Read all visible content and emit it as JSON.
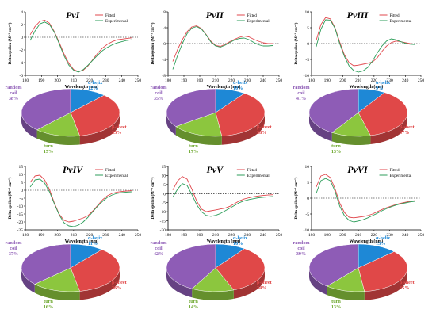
{
  "colors": {
    "fitted": "#e0474c",
    "experimental": "#2e9e5b",
    "alpha_helix": "#1e88d6",
    "beta_sheet": "#e04848",
    "turn": "#8cc63e",
    "random_coil": "#8e5cb6",
    "alpha_label": "#1e88d6",
    "beta_label": "#e04848",
    "turn_label": "#6aa62a",
    "coil_label": "#8e5cb6"
  },
  "chart_data": [
    {
      "type": "line",
      "title": "PvI",
      "xlabel": "Wavelength (nm)",
      "ylabel": "Delta epsilon (M⁻¹ cm⁻¹)",
      "xlim": [
        180,
        250
      ],
      "ylim": [
        -6,
        4
      ],
      "xticks": [
        180,
        190,
        200,
        210,
        220,
        230,
        240,
        250
      ],
      "yticks": [
        -6,
        -4,
        -2,
        0,
        2,
        4
      ],
      "legend_position": "top-right",
      "series": [
        {
          "name": "Fitted",
          "x": [
            183,
            186,
            189,
            192,
            195,
            198,
            201,
            204,
            207,
            210,
            213,
            216,
            219,
            222,
            225,
            228,
            231,
            234,
            237,
            240,
            243,
            246
          ],
          "y": [
            0.4,
            1.7,
            2.5,
            2.7,
            2.2,
            0.9,
            -0.8,
            -2.6,
            -4.1,
            -5.1,
            -5.4,
            -5.2,
            -4.5,
            -3.5,
            -2.5,
            -1.7,
            -1.1,
            -0.7,
            -0.4,
            -0.3,
            -0.2,
            -0.1
          ]
        },
        {
          "name": "Experimental",
          "x": [
            183,
            186,
            189,
            192,
            195,
            198,
            201,
            204,
            207,
            210,
            213,
            216,
            219,
            222,
            225,
            228,
            231,
            234,
            237,
            240,
            243,
            246
          ],
          "y": [
            -0.5,
            1.0,
            2.1,
            2.4,
            2.0,
            0.8,
            -1.0,
            -2.9,
            -4.4,
            -5.2,
            -5.5,
            -5.1,
            -4.4,
            -3.6,
            -2.8,
            -2.1,
            -1.6,
            -1.2,
            -0.9,
            -0.7,
            -0.5,
            -0.4
          ]
        }
      ]
    },
    {
      "type": "line",
      "title": "PvII",
      "xlabel": "Wavelength (nm)",
      "ylabel": "Delta epsilon (M⁻¹ cm⁻¹)",
      "xlim": [
        180,
        250
      ],
      "ylim": [
        -8,
        8
      ],
      "xticks": [
        180,
        190,
        200,
        210,
        220,
        230,
        240,
        250
      ],
      "yticks": [
        -8,
        -4,
        0,
        4,
        8
      ],
      "legend_position": "top-right",
      "series": [
        {
          "name": "Fitted",
          "x": [
            183,
            186,
            189,
            192,
            195,
            198,
            201,
            204,
            207,
            210,
            213,
            216,
            219,
            222,
            225,
            228,
            231,
            234,
            237,
            240,
            243,
            246
          ],
          "y": [
            -4.5,
            -1.5,
            1.0,
            3.0,
            4.2,
            4.5,
            3.8,
            2.3,
            0.6,
            -0.5,
            -0.7,
            -0.2,
            0.5,
            1.1,
            1.6,
            1.9,
            1.7,
            1.1,
            0.6,
            0.2,
            0.0,
            0.0
          ]
        },
        {
          "name": "Experimental",
          "x": [
            183,
            186,
            189,
            192,
            195,
            198,
            201,
            204,
            207,
            210,
            213,
            216,
            219,
            222,
            225,
            228,
            231,
            234,
            237,
            240,
            243,
            246
          ],
          "y": [
            -6.5,
            -3.0,
            0.0,
            2.5,
            3.9,
            4.3,
            3.7,
            2.2,
            0.4,
            -0.6,
            -0.9,
            -0.4,
            0.3,
            0.9,
            1.3,
            1.4,
            1.0,
            0.3,
            -0.3,
            -0.6,
            -0.6,
            -0.5
          ]
        }
      ]
    },
    {
      "type": "line",
      "title": "PvIII",
      "xlabel": "Wavelength (nm)",
      "ylabel": "Delta epsilon (M⁻¹ cm⁻¹)",
      "xlim": [
        180,
        250
      ],
      "ylim": [
        -10,
        10
      ],
      "xticks": [
        180,
        190,
        200,
        210,
        220,
        230,
        240,
        250
      ],
      "yticks": [
        -10,
        -5,
        0,
        5,
        10
      ],
      "legend_position": "top-right",
      "series": [
        {
          "name": "Fitted",
          "x": [
            183,
            186,
            189,
            192,
            195,
            198,
            201,
            204,
            207,
            210,
            213,
            216,
            219,
            222,
            225,
            228,
            231,
            234,
            237,
            240,
            243,
            246
          ],
          "y": [
            1.0,
            6.0,
            8.2,
            7.8,
            5.0,
            0.5,
            -3.5,
            -6.0,
            -7.0,
            -6.8,
            -6.5,
            -6.2,
            -5.8,
            -4.5,
            -2.5,
            -0.8,
            0.3,
            0.8,
            0.6,
            0.3,
            0.0,
            -0.2
          ]
        },
        {
          "name": "Experimental",
          "x": [
            183,
            186,
            189,
            192,
            195,
            198,
            201,
            204,
            207,
            210,
            213,
            216,
            219,
            222,
            225,
            228,
            231,
            234,
            237,
            240,
            243,
            246
          ],
          "y": [
            -1.0,
            4.5,
            7.5,
            7.4,
            4.8,
            0.0,
            -4.0,
            -7.0,
            -8.5,
            -9.0,
            -8.6,
            -7.5,
            -5.5,
            -3.0,
            -0.8,
            0.8,
            1.5,
            1.2,
            0.6,
            0.1,
            -0.2,
            -0.3
          ]
        }
      ]
    },
    {
      "type": "line",
      "title": "PvIV",
      "xlabel": "Wavelength (nm)",
      "ylabel": "Delta epsilon (M⁻¹ cm⁻¹)",
      "xlim": [
        180,
        250
      ],
      "ylim": [
        -25,
        15
      ],
      "xticks": [
        180,
        190,
        200,
        210,
        220,
        230,
        240,
        250
      ],
      "yticks": [
        -25,
        -20,
        -15,
        -10,
        -5,
        0,
        5,
        10,
        15
      ],
      "legend_position": "top-right",
      "series": [
        {
          "name": "Fitted",
          "x": [
            183,
            186,
            189,
            192,
            195,
            198,
            201,
            204,
            207,
            210,
            213,
            216,
            219,
            222,
            225,
            228,
            231,
            234,
            237,
            240,
            243,
            246
          ],
          "y": [
            5.0,
            9.0,
            9.5,
            6.5,
            0.5,
            -8.0,
            -15.0,
            -19.0,
            -20.0,
            -19.5,
            -18.5,
            -17.5,
            -16.0,
            -13.0,
            -9.5,
            -6.0,
            -3.5,
            -2.0,
            -1.2,
            -0.8,
            -0.5,
            -0.3
          ]
        },
        {
          "name": "Experimental",
          "x": [
            183,
            186,
            189,
            192,
            195,
            198,
            201,
            204,
            207,
            210,
            213,
            216,
            219,
            222,
            225,
            228,
            231,
            234,
            237,
            240,
            243,
            246
          ],
          "y": [
            2.0,
            6.5,
            7.0,
            4.5,
            -1.0,
            -8.5,
            -15.5,
            -20.5,
            -22.5,
            -23.0,
            -22.0,
            -20.0,
            -17.0,
            -13.5,
            -10.0,
            -7.0,
            -4.5,
            -3.0,
            -2.0,
            -1.5,
            -1.2,
            -1.0
          ]
        }
      ]
    },
    {
      "type": "line",
      "title": "PvV",
      "xlabel": "Wavelength (nm)",
      "ylabel": "Delta epsilon (M⁻¹ cm⁻¹)",
      "xlim": [
        180,
        250
      ],
      "ylim": [
        -20,
        15
      ],
      "xticks": [
        180,
        190,
        200,
        210,
        220,
        230,
        240,
        250
      ],
      "yticks": [
        -20,
        -15,
        -10,
        -5,
        0,
        5,
        10,
        15
      ],
      "legend_position": "top-right",
      "series": [
        {
          "name": "Fitted",
          "x": [
            183,
            186,
            189,
            192,
            195,
            198,
            201,
            204,
            207,
            210,
            213,
            216,
            219,
            222,
            225,
            228,
            231,
            234,
            237,
            240,
            243,
            246
          ],
          "y": [
            2.0,
            7.0,
            9.5,
            8.0,
            2.5,
            -4.0,
            -8.5,
            -10.0,
            -9.5,
            -9.0,
            -8.5,
            -8.0,
            -7.0,
            -5.5,
            -4.0,
            -3.0,
            -2.3,
            -1.7,
            -1.3,
            -1.0,
            -0.8,
            -0.6
          ]
        },
        {
          "name": "Experimental",
          "x": [
            183,
            186,
            189,
            192,
            195,
            198,
            201,
            204,
            207,
            210,
            213,
            216,
            219,
            222,
            225,
            228,
            231,
            234,
            237,
            240,
            243,
            246
          ],
          "y": [
            -2.0,
            2.5,
            5.5,
            4.5,
            -0.5,
            -6.0,
            -10.0,
            -12.0,
            -12.5,
            -12.0,
            -11.0,
            -9.5,
            -8.0,
            -6.5,
            -5.0,
            -4.0,
            -3.3,
            -2.8,
            -2.3,
            -2.0,
            -1.8,
            -1.6
          ]
        }
      ]
    },
    {
      "type": "line",
      "title": "PvVI",
      "xlabel": "Wavelength (nm)",
      "ylabel": "Delta epsilon (M⁻¹ cm⁻¹)",
      "xlim": [
        180,
        250
      ],
      "ylim": [
        -10,
        10
      ],
      "xticks": [
        180,
        190,
        200,
        210,
        220,
        230,
        240,
        250
      ],
      "yticks": [
        -10,
        -5,
        0,
        5,
        10
      ],
      "legend_position": "top-right",
      "series": [
        {
          "name": "Fitted",
          "x": [
            183,
            186,
            189,
            192,
            195,
            198,
            201,
            204,
            207,
            210,
            213,
            216,
            219,
            222,
            225,
            228,
            231,
            234,
            237,
            240,
            243,
            246
          ],
          "y": [
            3.5,
            7.0,
            7.5,
            6.5,
            3.0,
            -1.5,
            -4.5,
            -6.0,
            -6.2,
            -6.0,
            -5.8,
            -5.5,
            -5.0,
            -4.3,
            -3.6,
            -3.0,
            -2.5,
            -2.0,
            -1.6,
            -1.3,
            -1.0,
            -0.8
          ]
        },
        {
          "name": "Experimental",
          "x": [
            183,
            186,
            189,
            192,
            195,
            198,
            201,
            204,
            207,
            210,
            213,
            216,
            219,
            222,
            225,
            228,
            231,
            234,
            237,
            240,
            243,
            246
          ],
          "y": [
            1.5,
            5.5,
            6.2,
            5.5,
            2.2,
            -2.5,
            -5.5,
            -7.0,
            -7.5,
            -7.2,
            -6.8,
            -6.2,
            -5.5,
            -4.8,
            -4.0,
            -3.3,
            -2.7,
            -2.2,
            -1.8,
            -1.5,
            -1.2,
            -1.0
          ]
        }
      ]
    },
    {
      "type": "pie",
      "labels": [
        "α-helix",
        "β-sheet",
        "turn",
        "random coil"
      ],
      "values": [
        12,
        35,
        15,
        38
      ],
      "display": [
        "α-helix\n12%",
        "β-sheet\n35%",
        "turn\n15%",
        "random\ncoil\n38%"
      ]
    },
    {
      "type": "pie",
      "labels": [
        "α-helix",
        "β-sheet",
        "turn",
        "random coil"
      ],
      "values": [
        10,
        38,
        17,
        35
      ],
      "display": [
        "α-helix\n10%",
        "β-sheet\n38%",
        "turn\n17%",
        "random\ncoil\n35%"
      ]
    },
    {
      "type": "pie",
      "labels": [
        "α-helix",
        "β-sheet",
        "turn",
        "random coil"
      ],
      "values": [
        9,
        37,
        13,
        41
      ],
      "display": [
        "α-helix\n9%",
        "β-sheet\n37%",
        "turn\n13%",
        "random\ncoil\n41%"
      ]
    },
    {
      "type": "pie",
      "labels": [
        "α-helix",
        "β-sheet",
        "turn",
        "random coil"
      ],
      "values": [
        11,
        36,
        16,
        37
      ],
      "display": [
        "α-helix\n11%",
        "β-sheet\n36%",
        "turn\n16%",
        "random\ncoil\n37%"
      ]
    },
    {
      "type": "pie",
      "labels": [
        "α-helix",
        "β-sheet",
        "turn",
        "random coil"
      ],
      "values": [
        10,
        34,
        14,
        42
      ],
      "display": [
        "α-helix\n10%",
        "β-sheet\n34%",
        "turn\n14%",
        "random\ncoil\n42%"
      ]
    },
    {
      "type": "pie",
      "labels": [
        "α-helix",
        "β-sheet",
        "turn",
        "random coil"
      ],
      "values": [
        13,
        35,
        13,
        39
      ],
      "display": [
        "α-helix\n13%",
        "β-sheet\n35%",
        "turn\n13%",
        "random\ncoil\n39%"
      ]
    }
  ]
}
